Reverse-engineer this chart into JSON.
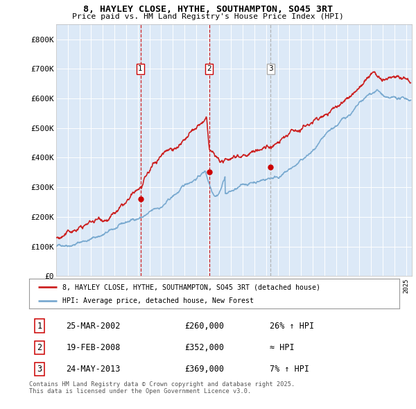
{
  "title_line1": "8, HAYLEY CLOSE, HYTHE, SOUTHAMPTON, SO45 3RT",
  "title_line2": "Price paid vs. HM Land Registry's House Price Index (HPI)",
  "ylim": [
    0,
    850000
  ],
  "yticks": [
    0,
    100000,
    200000,
    300000,
    400000,
    500000,
    600000,
    700000,
    800000
  ],
  "ytick_labels": [
    "£0",
    "£100K",
    "£200K",
    "£300K",
    "£400K",
    "£500K",
    "£600K",
    "£700K",
    "£800K"
  ],
  "sale_dates": [
    2002.23,
    2008.13,
    2013.39
  ],
  "sale_prices": [
    260000,
    352000,
    369000
  ],
  "sale_labels": [
    "1",
    "2",
    "3"
  ],
  "vline_colors": [
    "#cc0000",
    "#cc0000",
    "#aaaaaa"
  ],
  "sale_marker_color": "#cc0000",
  "hpi_line_color": "#7aaad0",
  "price_line_color": "#cc2222",
  "background_color": "#dce9f7",
  "grid_color": "#ffffff",
  "legend_label_red": "8, HAYLEY CLOSE, HYTHE, SOUTHAMPTON, SO45 3RT (detached house)",
  "legend_label_blue": "HPI: Average price, detached house, New Forest",
  "table_data": [
    {
      "num": "1",
      "date": "25-MAR-2002",
      "price": "£260,000",
      "hpi": "26% ↑ HPI"
    },
    {
      "num": "2",
      "date": "19-FEB-2008",
      "price": "£352,000",
      "hpi": "≈ HPI"
    },
    {
      "num": "3",
      "date": "24-MAY-2013",
      "price": "£369,000",
      "hpi": "7% ↑ HPI"
    }
  ],
  "footer": "Contains HM Land Registry data © Crown copyright and database right 2025.\nThis data is licensed under the Open Government Licence v3.0.",
  "xlim_start": 1995.0,
  "xlim_end": 2025.5
}
